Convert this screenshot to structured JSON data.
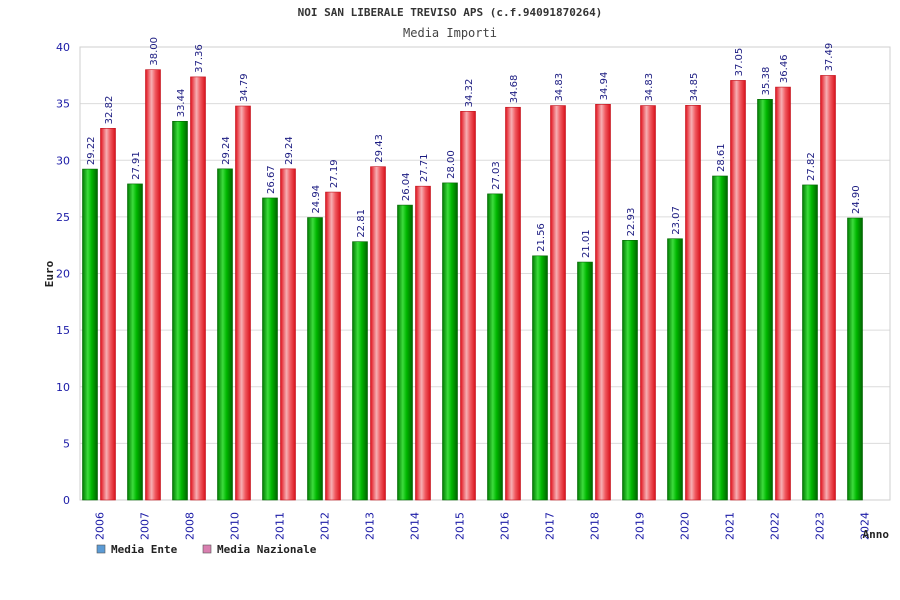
{
  "chart_data": {
    "type": "bar",
    "title": "NOI SAN LIBERALE TREVISO APS (c.f.94091870264)",
    "subtitle": "Media Importi",
    "xlabel": "Anno",
    "ylabel": "Euro",
    "ylim": [
      0,
      40
    ],
    "yticks": [
      0,
      5,
      10,
      15,
      20,
      25,
      30,
      35,
      40
    ],
    "grid": true,
    "legend_position": "bottom-left",
    "categories": [
      "2006",
      "2007",
      "2008",
      "2010",
      "2011",
      "2012",
      "2013",
      "2014",
      "2015",
      "2016",
      "2017",
      "2018",
      "2019",
      "2020",
      "2021",
      "2022",
      "2023",
      "2024"
    ],
    "series": [
      {
        "name": "Media Ente",
        "color": "#00aa00",
        "legend_color": "#5b9bd5",
        "values": [
          29.22,
          27.91,
          33.44,
          29.24,
          26.67,
          24.94,
          22.81,
          26.04,
          28.0,
          27.03,
          21.56,
          21.01,
          22.93,
          23.07,
          28.61,
          35.38,
          27.82,
          24.9
        ],
        "labels": [
          "29.22",
          "27.91",
          "33.44",
          "29.24",
          "26.67",
          "24.94",
          "22.81",
          "26.04",
          "28.00",
          "27.03",
          "21.56",
          "21.01",
          "22.93",
          "23.07",
          "28.61",
          "35.38",
          "27.82",
          "24.90"
        ]
      },
      {
        "name": "Media Nazionale",
        "color": "#e8202a",
        "legend_color": "#d97fb0",
        "values": [
          32.82,
          38.0,
          37.36,
          34.79,
          29.24,
          27.19,
          29.43,
          27.71,
          34.32,
          34.68,
          34.83,
          34.94,
          34.83,
          34.85,
          37.05,
          36.46,
          37.49,
          null
        ],
        "labels": [
          "32.82",
          "38.00",
          "37.36",
          "34.79",
          "29.24",
          "27.19",
          "29.43",
          "27.71",
          "34.32",
          "34.68",
          "34.83",
          "34.94",
          "34.83",
          "34.85",
          "37.05",
          "36.46",
          "37.49",
          ""
        ]
      }
    ]
  }
}
